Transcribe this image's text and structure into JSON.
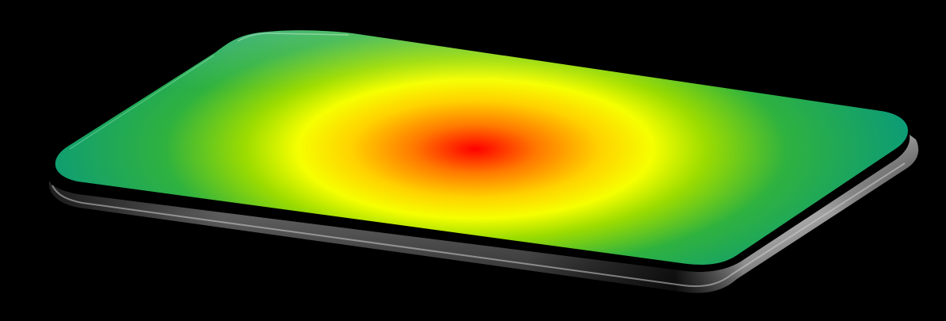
{
  "scene": {
    "subject": "heatmap-plate-3d-render",
    "background_color": "#000000",
    "colormap": [
      "#ff0000",
      "#ff7a00",
      "#ffd200",
      "#f6ff00",
      "#9cdc00",
      "#2fb23f",
      "#0a9a7a"
    ],
    "edge_colors": {
      "rim_dark": "#1a1a1a",
      "rim_mid": "#5e5e5e",
      "rim_highlight": "#d8d8d8"
    }
  }
}
